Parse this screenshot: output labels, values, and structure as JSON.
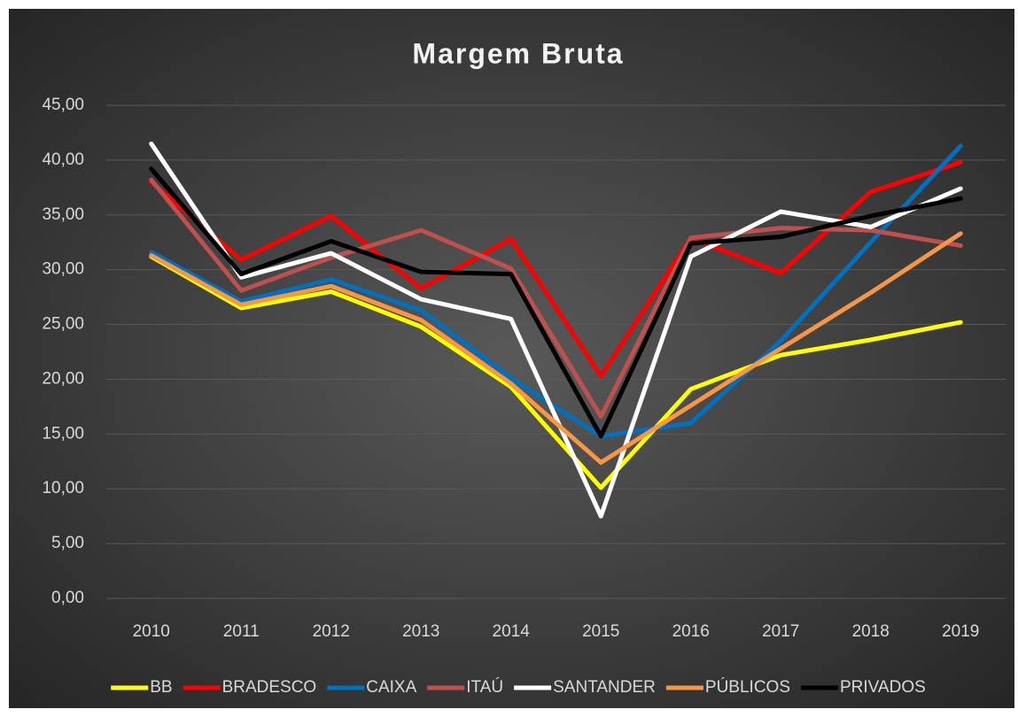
{
  "chart_data": {
    "type": "line",
    "title": "Margem Bruta",
    "categories": [
      "2010",
      "2011",
      "2012",
      "2013",
      "2014",
      "2015",
      "2016",
      "2017",
      "2018",
      "2019"
    ],
    "series": [
      {
        "name": "BB",
        "color": "#ffff00",
        "values": [
          31.2,
          26.5,
          28.0,
          24.8,
          19.3,
          10.1,
          19.1,
          22.2,
          23.6,
          25.2
        ]
      },
      {
        "name": "BRADESCO",
        "color": "#ff0000",
        "values": [
          38.0,
          30.9,
          34.9,
          28.3,
          32.8,
          20.3,
          32.9,
          29.7,
          37.1,
          39.8
        ]
      },
      {
        "name": "CAIXA",
        "color": "#0070c0",
        "values": [
          31.6,
          27.1,
          29.1,
          26.3,
          20.1,
          14.8,
          16.0,
          23.5,
          32.5,
          41.3
        ]
      },
      {
        "name": "ITAÚ",
        "color": "#c0504d",
        "values": [
          38.2,
          28.1,
          31.1,
          33.6,
          30.1,
          16.6,
          32.9,
          33.8,
          33.6,
          32.2
        ]
      },
      {
        "name": "SANTANDER",
        "color": "#ffffff",
        "values": [
          41.5,
          29.3,
          31.5,
          27.3,
          25.5,
          7.5,
          31.2,
          35.3,
          33.9,
          37.4
        ]
      },
      {
        "name": "PÚBLICOS",
        "color": "#f79646",
        "values": [
          31.3,
          26.8,
          28.5,
          25.4,
          19.6,
          12.4,
          17.6,
          22.8,
          27.9,
          33.3
        ]
      },
      {
        "name": "PRIVADOS",
        "color": "#000000",
        "values": [
          39.2,
          29.6,
          32.6,
          29.8,
          29.6,
          14.8,
          32.4,
          33.0,
          34.9,
          36.5
        ]
      }
    ],
    "ylim": [
      0,
      45
    ],
    "yticks": [
      {
        "value": 0,
        "label": "0,00"
      },
      {
        "value": 5,
        "label": "5,00"
      },
      {
        "value": 10,
        "label": "10,00"
      },
      {
        "value": 15,
        "label": "15,00"
      },
      {
        "value": 20,
        "label": "20,00"
      },
      {
        "value": 25,
        "label": "25,00"
      },
      {
        "value": 30,
        "label": "30,00"
      },
      {
        "value": 35,
        "label": "35,00"
      },
      {
        "value": 40,
        "label": "40,00"
      },
      {
        "value": 45,
        "label": "45,00"
      }
    ],
    "grid": true,
    "legend": "bottom"
  }
}
